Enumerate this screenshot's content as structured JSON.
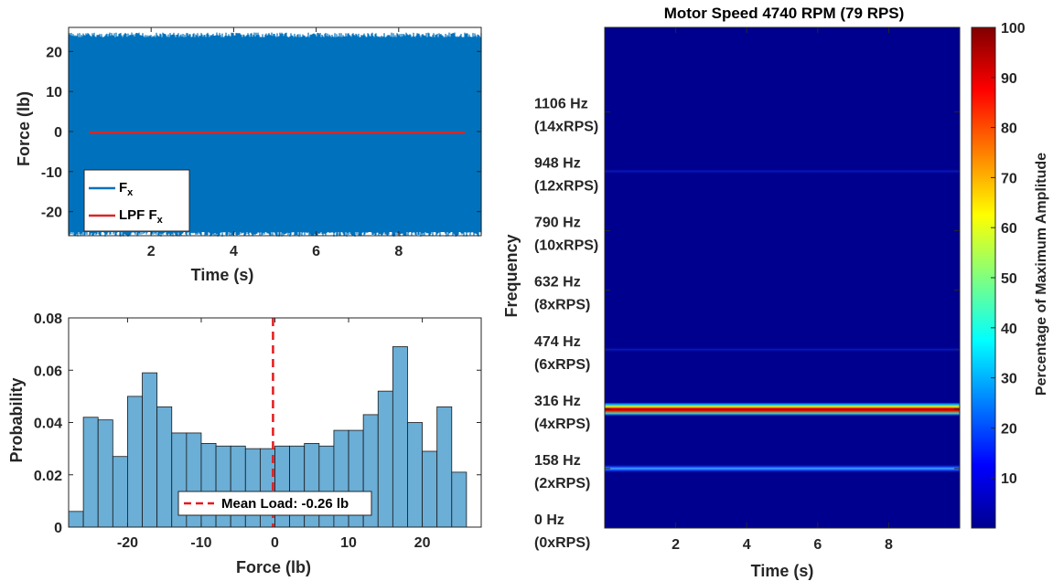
{
  "colors": {
    "fx": "#0072BD",
    "lpf": "#D62728",
    "hist_fill": "#6BAED6",
    "mean_line": "#E41A1C",
    "axis": "#262626"
  },
  "chart_data": [
    {
      "type": "line",
      "xlabel": "Time (s)",
      "ylabel": "Force (lb)",
      "xlim": [
        0,
        10
      ],
      "ylim": [
        -26,
        26
      ],
      "xticks": [
        2,
        4,
        6,
        8
      ],
      "yticks": [
        -20,
        -10,
        0,
        10,
        20
      ],
      "series": [
        {
          "name": "F",
          "name_sub": "x",
          "band_x": [
            0,
            10
          ],
          "band_y": [
            -26,
            24.5
          ]
        },
        {
          "name": "LPF F",
          "name_sub": "x",
          "x": [
            0.5,
            9.6
          ],
          "y": [
            -0.26,
            -0.26
          ]
        }
      ],
      "legend": "bottom-left"
    },
    {
      "type": "bar",
      "xlabel": "Force (lb)",
      "ylabel": "Probability",
      "xlim": [
        -28,
        28
      ],
      "ylim": [
        0,
        0.08
      ],
      "xticks": [
        -20,
        -10,
        0,
        10,
        20
      ],
      "yticks": [
        "0",
        "0.02",
        "0.04",
        "0.06",
        "0.08"
      ],
      "bin_edges": [
        -28,
        -26,
        -24,
        -22,
        -20,
        -18,
        -16,
        -14,
        -12,
        -10,
        -8,
        -6,
        -4,
        -2,
        0,
        2,
        4,
        6,
        8,
        10,
        12,
        14,
        16,
        18,
        20,
        22,
        24,
        26
      ],
      "values": [
        0.006,
        0.042,
        0.041,
        0.027,
        0.05,
        0.059,
        0.046,
        0.036,
        0.036,
        0.032,
        0.031,
        0.031,
        0.03,
        0.03,
        0.031,
        0.031,
        0.032,
        0.031,
        0.037,
        0.037,
        0.043,
        0.052,
        0.069,
        0.04,
        0.029,
        0.046,
        0.021
      ],
      "mean_line": {
        "x": -0.26,
        "label": "Mean Load: -0.26 lb"
      },
      "legend": "bottom-center"
    },
    {
      "type": "heatmap",
      "title": "Motor Speed 4740 RPM (79 RPS)",
      "xlabel": "Time (s)",
      "ylabel": "Frequency",
      "xlim": [
        0,
        10
      ],
      "xticks": [
        2,
        4,
        6,
        8
      ],
      "ylim_hz": [
        0,
        1264
      ],
      "yticks": [
        {
          "hz": 0,
          "line1": "0 Hz",
          "line2": "(0xRPS)"
        },
        {
          "hz": 158,
          "line1": "158 Hz",
          "line2": "(2xRPS)"
        },
        {
          "hz": 316,
          "line1": "316 Hz",
          "line2": "(4xRPS)"
        },
        {
          "hz": 474,
          "line1": "474 Hz",
          "line2": "(6xRPS)"
        },
        {
          "hz": 632,
          "line1": "632 Hz",
          "line2": "(8xRPS)"
        },
        {
          "hz": 790,
          "line1": "790 Hz",
          "line2": "(10xRPS)"
        },
        {
          "hz": 948,
          "line1": "948 Hz",
          "line2": "(12xRPS)"
        },
        {
          "hz": 1106,
          "line1": "1106 Hz",
          "line2": "(14xRPS)"
        }
      ],
      "bands": [
        {
          "hz": 158,
          "amplitude": 18
        },
        {
          "hz": 316,
          "amplitude": 100
        },
        {
          "hz": 474,
          "amplitude": 5
        },
        {
          "hz": 948,
          "amplitude": 10
        }
      ],
      "colorbar": {
        "label": "Percentage of Maximum Amplitude",
        "range": [
          0,
          100
        ],
        "ticks": [
          10,
          20,
          30,
          40,
          50,
          60,
          70,
          80,
          90,
          100
        ],
        "colormap": "jet"
      }
    }
  ]
}
